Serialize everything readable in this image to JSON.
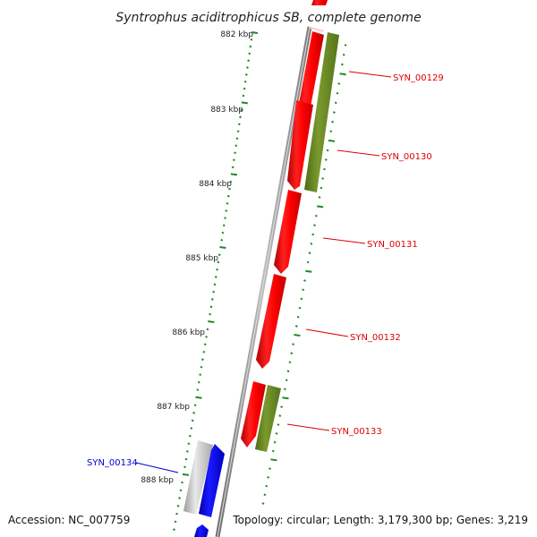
{
  "title": "Syntrophus aciditrophicus SB, complete genome",
  "footer": {
    "accession": "Accession: NC_007759",
    "topology": "Topology: circular; Length: 3,179,300 bp; Genes: 3,219"
  },
  "colors": {
    "forward_gene": "#ff0000",
    "forward_gene_alt": "#6b8e23",
    "reverse_gene": "#0000ff",
    "reverse_gene_alt": "#bbbbbb",
    "backbone": "#888888",
    "tick": "#228b22"
  },
  "ruler": {
    "unit": "kbp",
    "labels": [
      "882 kbp",
      "883 kbp",
      "884 kbp",
      "885 kbp",
      "886 kbp",
      "887 kbp",
      "888 kbp"
    ]
  },
  "genes": [
    {
      "label": "SYN_00129",
      "color": "#dd0000",
      "strand": "forward"
    },
    {
      "label": "SYN_00130",
      "color": "#dd0000",
      "strand": "forward"
    },
    {
      "label": "SYN_00131",
      "color": "#dd0000",
      "strand": "forward"
    },
    {
      "label": "SYN_00132",
      "color": "#dd0000",
      "strand": "forward"
    },
    {
      "label": "SYN_00133",
      "color": "#dd0000",
      "strand": "forward"
    },
    {
      "label": "SYN_00134",
      "color": "#0000cc",
      "strand": "reverse"
    }
  ]
}
